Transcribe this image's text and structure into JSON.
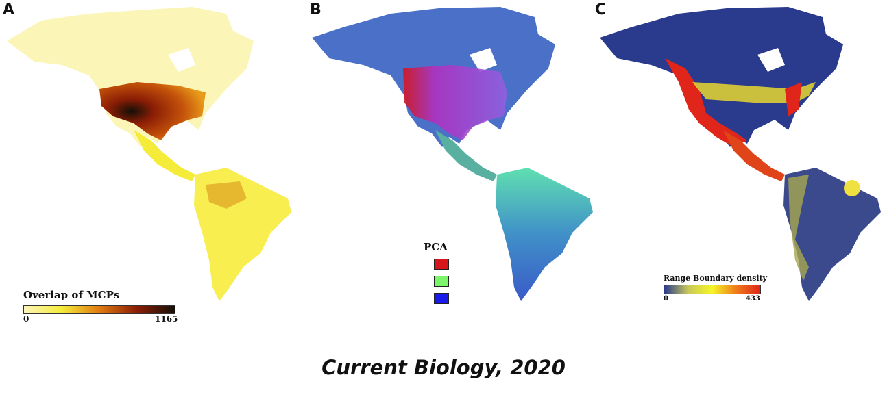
{
  "panels": [
    {
      "letter": "A",
      "legend_title": "Overlap of MCPs",
      "scale_min": "0",
      "scale_max": "1165",
      "colors": [
        "#fbf5b8",
        "#f5ec3a",
        "#e07a10",
        "#8a1d05",
        "#141008"
      ]
    },
    {
      "letter": "B",
      "legend_title": "PCA",
      "swatch_colors": [
        "#d7161c",
        "#7cf56a",
        "#1a1aeb"
      ]
    },
    {
      "letter": "C",
      "legend_title": "Range Boundary density",
      "scale_min": "0",
      "scale_max": "433",
      "colors": [
        "#2a3a8c",
        "#c8c85a",
        "#f5f528",
        "#f07b1a",
        "#e0251a"
      ]
    }
  ],
  "credit": "Current Biology, 2020"
}
